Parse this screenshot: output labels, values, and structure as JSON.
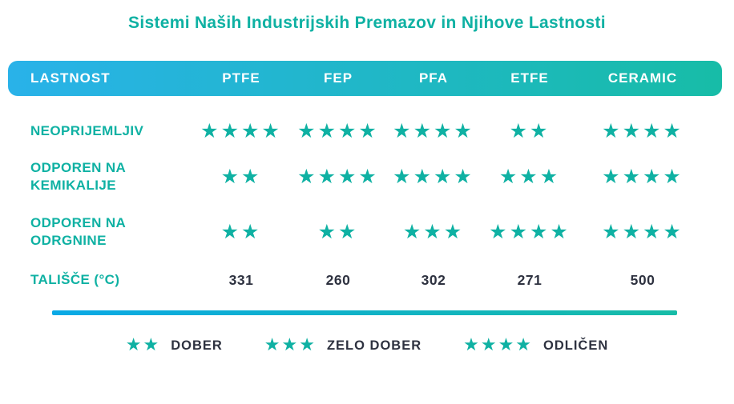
{
  "title": "Sistemi Naših Industrijskih Premazov in Njihove Lastnosti",
  "colors": {
    "teal": "#0FB1A3",
    "dark_text": "#2E3240",
    "header_gradient_left": "#29B2E9",
    "header_gradient_right": "#17BCA7",
    "divider_gradient_left": "#0AA9E6"
  },
  "star_glyph": "★",
  "table": {
    "header": [
      "LASTNOST",
      "PTFE",
      "FEP",
      "PFA",
      "ETFE",
      "CERAMIC"
    ],
    "rows": [
      {
        "label": "NEOPRIJEMLJIV",
        "type": "stars",
        "values": [
          4,
          4,
          4,
          2,
          4
        ]
      },
      {
        "label": "ODPOREN NA KEMIKALIJE",
        "type": "stars",
        "values": [
          2,
          4,
          4,
          3,
          4
        ]
      },
      {
        "label": "ODPOREN NA ODRGNINE",
        "type": "stars",
        "values": [
          2,
          2,
          3,
          4,
          4
        ]
      },
      {
        "label": "TALIŠČE (°C)",
        "type": "number",
        "values": [
          "331",
          "260",
          "302",
          "271",
          "500"
        ]
      }
    ]
  },
  "legend": [
    {
      "stars": 2,
      "label": "DOBER"
    },
    {
      "stars": 3,
      "label": "ZELO DOBER"
    },
    {
      "stars": 4,
      "label": "ODLIČEN"
    }
  ],
  "chart_data": {
    "type": "table",
    "title": "Sistemi Naših Industrijskih Premazov in Njihove Lastnosti",
    "columns": [
      "LASTNOST",
      "PTFE",
      "FEP",
      "PFA",
      "ETFE",
      "CERAMIC"
    ],
    "rows": [
      [
        "NEOPRIJEMLJIV",
        4,
        4,
        4,
        2,
        4
      ],
      [
        "ODPOREN NA KEMIKALIJE",
        2,
        4,
        4,
        3,
        4
      ],
      [
        "ODPOREN NA ODRGNINE",
        2,
        2,
        3,
        4,
        4
      ],
      [
        "TALIŠČE (°C)",
        331,
        260,
        302,
        271,
        500
      ]
    ],
    "value_unit_star_rows": "star rating out of 4",
    "legend": [
      "2 stars = DOBER",
      "3 stars = ZELO DOBER",
      "4 stars = ODLIČEN"
    ]
  }
}
